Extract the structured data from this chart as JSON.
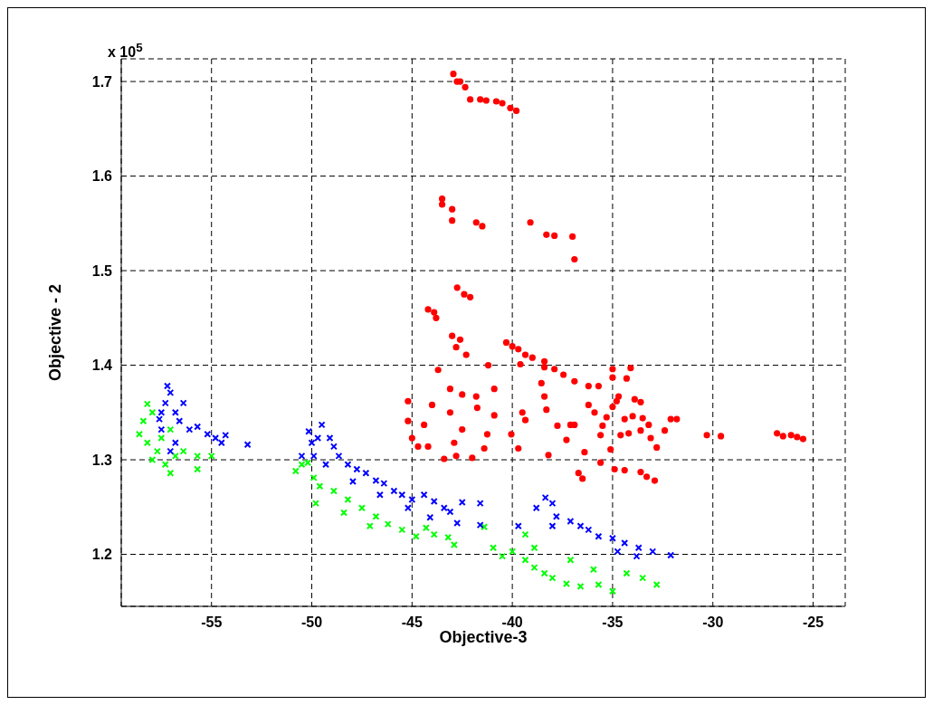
{
  "chart_data": {
    "type": "scatter",
    "xlabel": "Objective-3",
    "ylabel": "Objective - 2",
    "annotations": [
      "x 10$^{5}$"
    ],
    "xlim": [
      -59.5,
      -23.4
    ],
    "ylim": [
      1.145,
      1.724
    ],
    "xticks": [
      -55,
      -50,
      -45,
      -40,
      -35,
      -30,
      -25
    ],
    "yticks": [
      1.2,
      1.3,
      1.4,
      1.5,
      1.6,
      1.7
    ],
    "grid": true,
    "line_style": "dashed",
    "legend": false,
    "series": [
      {
        "color": "#ff0000",
        "marker": "circle",
        "x": [
          -42.94,
          -42.76,
          -42.6,
          -42.35,
          -42.1,
          -41.6,
          -41.3,
          -40.8,
          -40.5,
          -40.1,
          -39.8,
          -43.5,
          -43.5,
          -43,
          -43,
          -41.8,
          -41.5,
          -39.1,
          -38.3,
          -37.9,
          -37,
          -36.9,
          -42.75,
          -42.4,
          -42.1,
          -44.2,
          -43.9,
          -43.8,
          -43,
          -42.6,
          -42.8,
          -42.3,
          -40.3,
          -40,
          -39.7,
          -39.35,
          -39,
          -38.4,
          -38.4,
          -37.9,
          -37.45,
          -36.9,
          -36.2,
          -35.7,
          -35,
          -35,
          -34.7,
          -33.9,
          -33.6,
          -32.1,
          -31.8,
          -30.3,
          -29.6,
          -26.8,
          -26.5,
          -26.1,
          -25.8,
          -25.5,
          -45.2,
          -45.2,
          -45,
          -44.7,
          -44.2,
          -44.4,
          -44,
          -43.7,
          -43.1,
          -43.1,
          -42.5,
          -41.8,
          -41.2,
          -40.9,
          -40.9,
          -42.5,
          -41.75,
          -41.25,
          -42.9,
          -43.4,
          -42.8,
          -42,
          -41.4,
          -39.6,
          -39.5,
          -40.05,
          -39.7,
          -39.35,
          -38.55,
          -38.4,
          -38.2,
          -37.3,
          -36.4,
          -36.7,
          -36.5,
          -35.6,
          -35.9,
          -35.3,
          -34.8,
          -34.4,
          -34.2,
          -34,
          -35.1,
          -35,
          -33.5,
          -33.2,
          -33.1,
          -32.8,
          -32.4,
          -37.1,
          -36.2,
          -35.5,
          -34.6,
          -33.6,
          -34.1,
          -34.3,
          -38.3,
          -37.75,
          -35.6,
          -34.9,
          -34.4,
          -33.6,
          -33.3,
          -32.9,
          -36.9
        ],
        "values": [
          1.708,
          1.7,
          1.7,
          1.694,
          1.681,
          1.681,
          1.68,
          1.679,
          1.677,
          1.672,
          1.669,
          1.576,
          1.57,
          1.565,
          1.553,
          1.551,
          1.547,
          1.551,
          1.538,
          1.537,
          1.536,
          1.512,
          1.482,
          1.475,
          1.472,
          1.459,
          1.456,
          1.45,
          1.431,
          1.427,
          1.419,
          1.411,
          1.424,
          1.42,
          1.417,
          1.411,
          1.408,
          1.404,
          1.398,
          1.396,
          1.39,
          1.383,
          1.378,
          1.378,
          1.396,
          1.387,
          1.367,
          1.364,
          1.361,
          1.343,
          1.343,
          1.326,
          1.325,
          1.328,
          1.325,
          1.326,
          1.324,
          1.322,
          1.362,
          1.341,
          1.323,
          1.314,
          1.314,
          1.337,
          1.358,
          1.395,
          1.375,
          1.35,
          1.369,
          1.367,
          1.4,
          1.375,
          1.347,
          1.332,
          1.355,
          1.327,
          1.318,
          1.301,
          1.304,
          1.302,
          1.312,
          1.401,
          1.35,
          1.327,
          1.312,
          1.342,
          1.381,
          1.367,
          1.305,
          1.321,
          1.308,
          1.286,
          1.28,
          1.326,
          1.35,
          1.345,
          1.362,
          1.343,
          1.328,
          1.346,
          1.311,
          1.356,
          1.344,
          1.337,
          1.323,
          1.313,
          1.331,
          1.337,
          1.358,
          1.336,
          1.326,
          1.331,
          1.397,
          1.386,
          1.353,
          1.336,
          1.297,
          1.29,
          1.289,
          1.287,
          1.282,
          1.278,
          1.337
        ]
      },
      {
        "color": "#00ff00",
        "marker": "cross",
        "x": [
          -57.95,
          -58.4,
          -58.6,
          -58.2,
          -57.7,
          -57.95,
          -57.3,
          -56.8,
          -56.4,
          -55.7,
          -55,
          -55.7,
          -57.05,
          -57.5,
          -57.05,
          -58.2,
          -50.8,
          -50.5,
          -50.2,
          -49.9,
          -49.6,
          -48.9,
          -48.2,
          -47.5,
          -46.8,
          -46.2,
          -45.5,
          -44.8,
          -43.9,
          -43.2,
          -42.9,
          -49.8,
          -48.4,
          -47.1,
          -44.3,
          -41.4,
          -40.95,
          -40.5,
          -40,
          -39.35,
          -38.9,
          -38.4,
          -38,
          -37.3,
          -36.6,
          -35.7,
          -35,
          -35.95,
          -34.3,
          -33.5,
          -32.8,
          -39.35,
          -37.1,
          -38.9
        ],
        "values": [
          1.35,
          1.341,
          1.327,
          1.318,
          1.309,
          1.3,
          1.295,
          1.304,
          1.309,
          1.304,
          1.304,
          1.29,
          1.286,
          1.323,
          1.332,
          1.359,
          1.288,
          1.295,
          1.297,
          1.281,
          1.272,
          1.267,
          1.258,
          1.249,
          1.24,
          1.232,
          1.226,
          1.219,
          1.221,
          1.218,
          1.21,
          1.254,
          1.244,
          1.23,
          1.228,
          1.229,
          1.207,
          1.198,
          1.203,
          1.194,
          1.186,
          1.18,
          1.175,
          1.169,
          1.166,
          1.168,
          1.161,
          1.184,
          1.18,
          1.175,
          1.168,
          1.221,
          1.194,
          1.207
        ]
      },
      {
        "color": "#0000ff",
        "marker": "cross",
        "x": [
          -57.2,
          -57.05,
          -57.3,
          -57.5,
          -56.8,
          -56.6,
          -57.5,
          -56.1,
          -55.7,
          -55.2,
          -54.8,
          -54.5,
          -54.3,
          -53.2,
          -56.8,
          -57.05,
          -57.6,
          -56.4,
          -50.15,
          -50,
          -49.7,
          -49.5,
          -49.1,
          -48.9,
          -48.65,
          -48.2,
          -47.75,
          -47.3,
          -46.8,
          -46.4,
          -45.9,
          -45.5,
          -45,
          -44.4,
          -43.9,
          -43.4,
          -43.1,
          -42.75,
          -42.5,
          -41.6,
          -44.1,
          -49.9,
          -50.5,
          -49.3,
          -47.95,
          -46.6,
          -45.2,
          -41.6,
          -38.35,
          -38,
          -38.8,
          -37.8,
          -37.1,
          -36.6,
          -36.2,
          -35.7,
          -35,
          -34.4,
          -33.7,
          -33,
          -32.1,
          -38,
          -34.75,
          -33.8,
          -39.7
        ],
        "values": [
          1.378,
          1.371,
          1.36,
          1.35,
          1.35,
          1.341,
          1.332,
          1.332,
          1.335,
          1.327,
          1.323,
          1.318,
          1.326,
          1.316,
          1.318,
          1.309,
          1.343,
          1.36,
          1.33,
          1.318,
          1.323,
          1.337,
          1.323,
          1.314,
          1.304,
          1.295,
          1.29,
          1.286,
          1.278,
          1.275,
          1.267,
          1.263,
          1.258,
          1.263,
          1.256,
          1.249,
          1.245,
          1.233,
          1.255,
          1.254,
          1.239,
          1.304,
          1.304,
          1.295,
          1.277,
          1.263,
          1.249,
          1.231,
          1.26,
          1.254,
          1.249,
          1.24,
          1.235,
          1.23,
          1.226,
          1.219,
          1.217,
          1.212,
          1.207,
          1.203,
          1.199,
          1.23,
          1.203,
          1.198,
          1.23
        ]
      }
    ]
  }
}
